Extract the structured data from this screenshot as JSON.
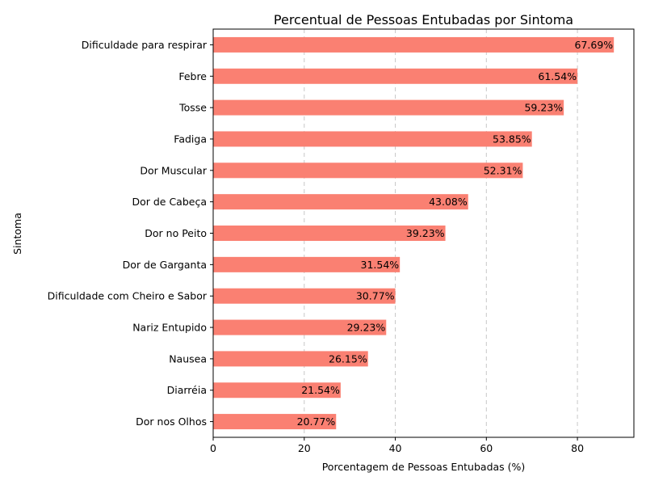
{
  "chart_data": {
    "type": "bar",
    "orientation": "horizontal",
    "title": "Percentual de Pessoas Entubadas por Sintoma",
    "xlabel": "Porcentagem de Pessoas Entubadas (%)",
    "ylabel": "Sintoma",
    "xlim": [
      0,
      92.4
    ],
    "xticks": [
      0,
      20,
      40,
      60,
      80
    ],
    "grid": "x-dashed",
    "bar_color": "#fa8072",
    "categories": [
      "Dificuldade para respirar",
      "Febre",
      "Tosse",
      "Fadiga",
      "Dor Muscular",
      "Dor de Cabeça",
      "Dor no Peito",
      "Dor de Garganta",
      "Dificuldade com Cheiro e Sabor",
      "Nariz Entupido",
      "Nausea",
      "Diarréia",
      "Dor nos Olhos"
    ],
    "values": [
      88,
      80,
      77,
      70,
      68,
      56,
      51,
      41,
      40,
      38,
      34,
      28,
      27
    ],
    "labels": [
      "67.69%",
      "61.54%",
      "59.23%",
      "53.85%",
      "52.31%",
      "43.08%",
      "39.23%",
      "31.54%",
      "30.77%",
      "29.23%",
      "26.15%",
      "21.54%",
      "20.77%"
    ]
  }
}
